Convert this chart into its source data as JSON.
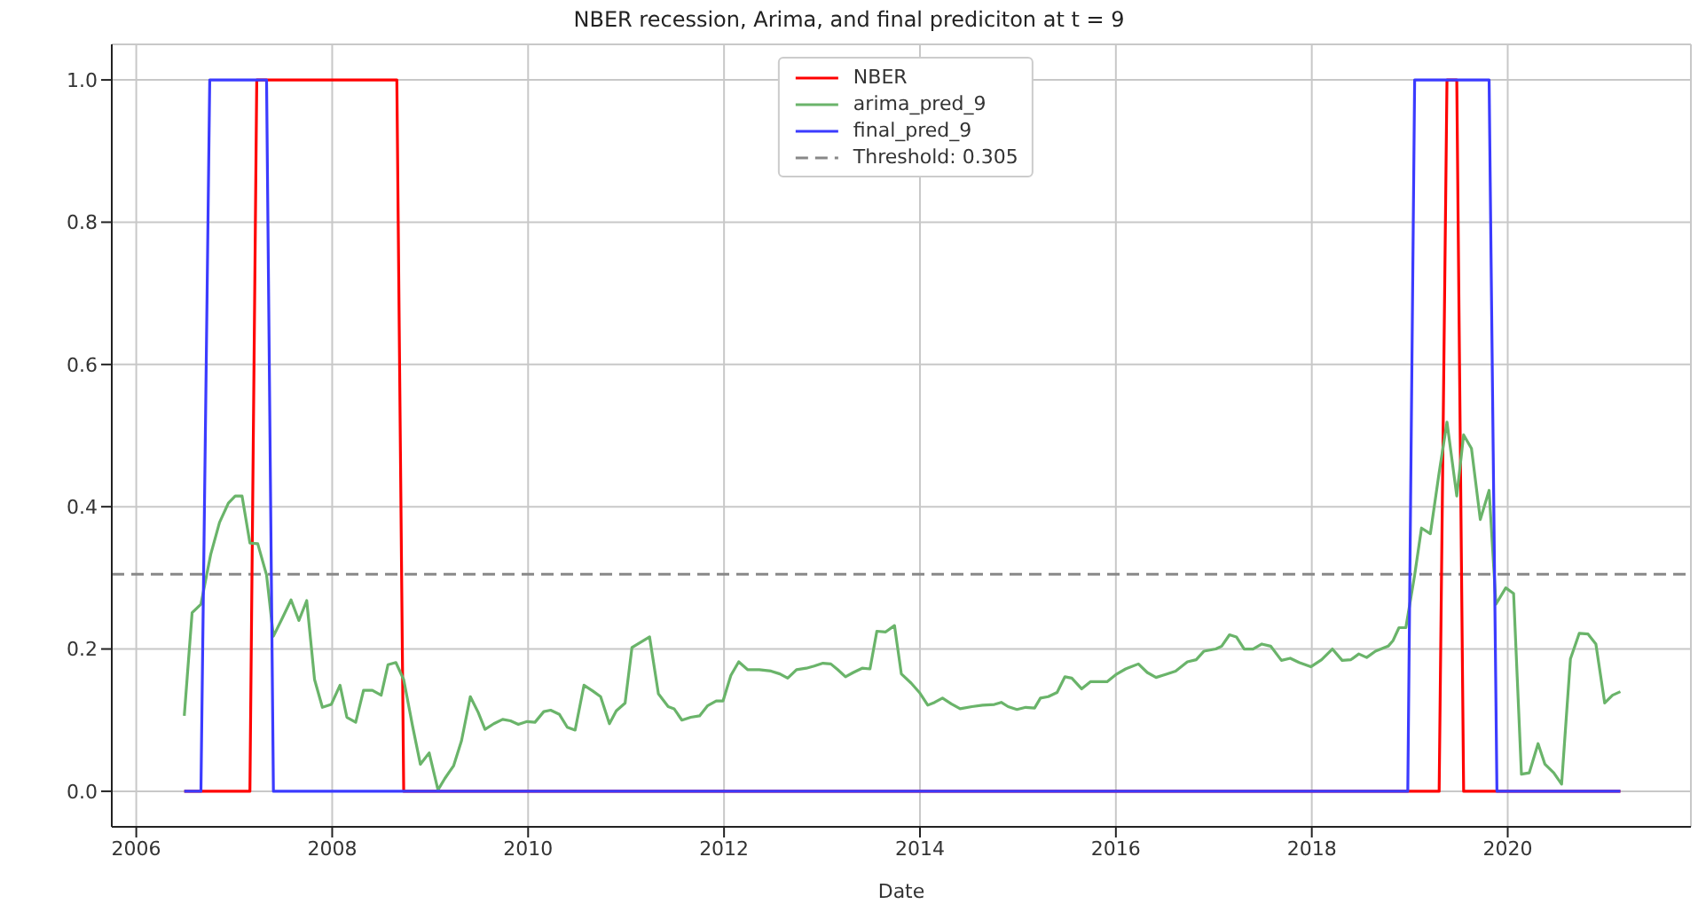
{
  "chart_data": {
    "type": "line",
    "title": "NBER recession, Arima, and final prediciton at t = 9",
    "xlabel": "Date",
    "xlim": [
      2005.75,
      2021.87
    ],
    "xticks": [
      2006,
      2008,
      2010,
      2012,
      2014,
      2016,
      2018,
      2020
    ],
    "ylim": [
      -0.05,
      1.05
    ],
    "yticks": [
      {
        "value": 0,
        "label": "0.0"
      },
      {
        "value": 0.2,
        "label": "0.2"
      },
      {
        "value": 0.4,
        "label": "0.4"
      },
      {
        "value": 0.6,
        "label": "0.6"
      },
      {
        "value": 0.8,
        "label": "0.8"
      },
      {
        "value": 1,
        "label": "1.0"
      }
    ],
    "grid": true,
    "legend": "top",
    "marker": "none",
    "line_style": "solid",
    "series": [
      {
        "name": "NBER",
        "color": "#ff0000",
        "x": [
          2006.49,
          2007.16,
          2007.23,
          2008.66,
          2008.73,
          2019.3,
          2019.38,
          2019.48,
          2019.55,
          2021.15
        ],
        "values": [
          0,
          0,
          1,
          1,
          0,
          0,
          1,
          1,
          0,
          0
        ]
      },
      {
        "name": "arima_pred_9",
        "color": "#6ab46a",
        "x": [
          2006.49,
          2006.57,
          2006.66,
          2006.76,
          2006.85,
          2006.94,
          2007.01,
          2007.08,
          2007.16,
          2007.24,
          2007.33,
          2007.4,
          2007.49,
          2007.58,
          2007.66,
          2007.74,
          2007.82,
          2007.9,
          2007.99,
          2008.08,
          2008.15,
          2008.24,
          2008.32,
          2008.41,
          2008.5,
          2008.57,
          2008.65,
          2008.73,
          2008.82,
          2008.9,
          2008.99,
          2009.08,
          2009.15,
          2009.24,
          2009.32,
          2009.41,
          2009.49,
          2009.56,
          2009.65,
          2009.74,
          2009.82,
          2009.9,
          2009.99,
          2010.07,
          2010.16,
          2010.23,
          2010.32,
          2010.4,
          2010.48,
          2010.57,
          2010.66,
          2010.74,
          2010.83,
          2010.9,
          2010.99,
          2011.06,
          2011.24,
          2011.33,
          2011.43,
          2011.49,
          2011.57,
          2011.66,
          2011.75,
          2011.83,
          2011.92,
          2011.99,
          2012.07,
          2012.15,
          2012.24,
          2012.36,
          2012.48,
          2012.57,
          2012.65,
          2012.74,
          2012.84,
          2012.92,
          2013.01,
          2013.09,
          2013.16,
          2013.24,
          2013.32,
          2013.41,
          2013.49,
          2013.56,
          2013.65,
          2013.74,
          2013.81,
          2013.91,
          2014.0,
          2014.08,
          2014.15,
          2014.23,
          2014.32,
          2014.41,
          2014.53,
          2014.64,
          2014.76,
          2014.83,
          2014.9,
          2014.99,
          2015.08,
          2015.17,
          2015.23,
          2015.31,
          2015.4,
          2015.48,
          2015.55,
          2015.65,
          2015.74,
          2015.82,
          2015.91,
          2016.0,
          2016.1,
          2016.23,
          2016.32,
          2016.41,
          2016.5,
          2016.61,
          2016.73,
          2016.82,
          2016.9,
          2017.02,
          2017.08,
          2017.16,
          2017.23,
          2017.31,
          2017.4,
          2017.49,
          2017.58,
          2017.69,
          2017.78,
          2017.87,
          2017.99,
          2018.1,
          2018.21,
          2018.31,
          2018.4,
          2018.48,
          2018.56,
          2018.65,
          2018.78,
          2018.83,
          2018.89,
          2018.96,
          2019.05,
          2019.12,
          2019.21,
          2019.3,
          2019.38,
          2019.48,
          2019.55,
          2019.63,
          2019.72,
          2019.81,
          2019.88,
          2019.98,
          2020.06,
          2020.14,
          2020.22,
          2020.31,
          2020.38,
          2020.47,
          2020.55,
          2020.64,
          2020.73,
          2020.82,
          2020.9,
          2020.99,
          2021.07,
          2021.15
        ],
        "values": [
          0.106,
          0.251,
          0.263,
          0.333,
          0.378,
          0.405,
          0.415,
          0.415,
          0.349,
          0.348,
          0.304,
          0.218,
          0.243,
          0.269,
          0.24,
          0.268,
          0.157,
          0.118,
          0.122,
          0.149,
          0.104,
          0.097,
          0.142,
          0.142,
          0.135,
          0.178,
          0.181,
          0.157,
          0.092,
          0.038,
          0.054,
          0.002,
          0.018,
          0.036,
          0.071,
          0.133,
          0.111,
          0.087,
          0.095,
          0.101,
          0.099,
          0.094,
          0.098,
          0.097,
          0.112,
          0.114,
          0.108,
          0.09,
          0.086,
          0.149,
          0.141,
          0.133,
          0.095,
          0.113,
          0.124,
          0.202,
          0.217,
          0.137,
          0.119,
          0.116,
          0.1,
          0.104,
          0.106,
          0.12,
          0.127,
          0.127,
          0.163,
          0.182,
          0.171,
          0.171,
          0.169,
          0.165,
          0.159,
          0.171,
          0.173,
          0.176,
          0.18,
          0.179,
          0.171,
          0.161,
          0.167,
          0.173,
          0.172,
          0.225,
          0.224,
          0.233,
          0.165,
          0.152,
          0.138,
          0.121,
          0.125,
          0.131,
          0.123,
          0.116,
          0.119,
          0.121,
          0.122,
          0.125,
          0.119,
          0.115,
          0.118,
          0.117,
          0.131,
          0.133,
          0.139,
          0.161,
          0.159,
          0.144,
          0.154,
          0.154,
          0.154,
          0.164,
          0.172,
          0.179,
          0.167,
          0.16,
          0.164,
          0.169,
          0.182,
          0.185,
          0.197,
          0.2,
          0.204,
          0.22,
          0.217,
          0.2,
          0.2,
          0.207,
          0.204,
          0.184,
          0.187,
          0.181,
          0.175,
          0.185,
          0.2,
          0.184,
          0.185,
          0.193,
          0.188,
          0.197,
          0.204,
          0.212,
          0.23,
          0.23,
          0.304,
          0.37,
          0.362,
          0.448,
          0.519,
          0.415,
          0.501,
          0.482,
          0.382,
          0.423,
          0.263,
          0.286,
          0.278,
          0.024,
          0.026,
          0.067,
          0.038,
          0.026,
          0.01,
          0.186,
          0.222,
          0.221,
          0.207,
          0.124,
          0.135,
          0.14
        ]
      },
      {
        "name": "final_pred_9",
        "color": "#3b3bff",
        "x": [
          2006.49,
          2006.66,
          2006.75,
          2007.33,
          2007.4,
          2018.98,
          2019.05,
          2019.81,
          2019.89,
          2021.15
        ],
        "values": [
          0,
          0,
          1,
          1,
          0,
          0,
          1,
          1,
          0,
          0
        ]
      }
    ],
    "ref_lines": [
      {
        "axis": "y",
        "value": 0.305,
        "label": "Threshold: 0.305",
        "color": "#888888",
        "line_style": "dashed"
      }
    ]
  }
}
